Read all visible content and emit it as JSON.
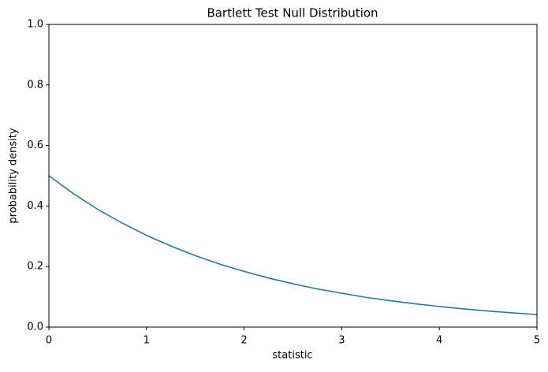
{
  "chart_data": {
    "type": "line",
    "title": "Bartlett Test Null Distribution",
    "xlabel": "statistic",
    "ylabel": "probability density",
    "x": [
      0,
      0.25,
      0.5,
      0.75,
      1,
      1.25,
      1.5,
      1.75,
      2,
      2.25,
      2.5,
      2.75,
      3,
      3.25,
      3.5,
      3.75,
      4,
      4.25,
      4.5,
      4.75,
      5
    ],
    "series": [
      {
        "color": "#1f77b4",
        "values": [
          0.5,
          0.441,
          0.389,
          0.344,
          0.303,
          0.268,
          0.236,
          0.208,
          0.184,
          0.162,
          0.143,
          0.126,
          0.112,
          0.098,
          0.087,
          0.077,
          0.068,
          0.06,
          0.053,
          0.047,
          0.041
        ]
      }
    ],
    "xlim": [
      0,
      5
    ],
    "xticks": [
      0,
      1,
      2,
      3,
      4,
      5
    ],
    "ylim": [
      0,
      1
    ],
    "yticks": [
      {
        "value": 0,
        "label": "0.0"
      },
      0.2,
      0.4,
      0.6,
      0.8,
      {
        "value": 1,
        "label": "1.0"
      }
    ],
    "grid": false
  }
}
